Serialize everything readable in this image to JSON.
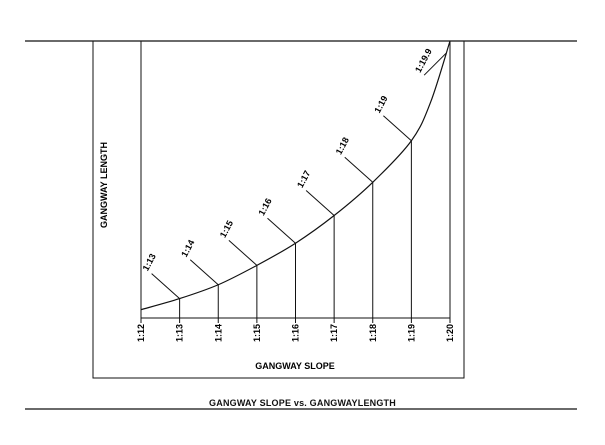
{
  "chart_data": {
    "type": "line",
    "title": "",
    "xlabel": "GANGWAY SLOPE",
    "ylabel": "GANGWAY LENGTH",
    "caption": "GANGWAY SLOPE vs. GANGWAYLENGTH",
    "x_ticks": [
      "1:12",
      "1:13",
      "1:14",
      "1:15",
      "1:16",
      "1:17",
      "1:18",
      "1:19",
      "1:20"
    ],
    "annotations": [
      {
        "label": "1:13",
        "slope": 13
      },
      {
        "label": "1:14",
        "slope": 14
      },
      {
        "label": "1:15",
        "slope": 15
      },
      {
        "label": "1:16",
        "slope": 16
      },
      {
        "label": "1:17",
        "slope": 17
      },
      {
        "label": "1:18",
        "slope": 18
      },
      {
        "label": "1:19",
        "slope": 19
      },
      {
        "label": "1:19.9",
        "slope": 19.9
      }
    ],
    "series": [
      {
        "x": [
          12,
          13,
          14,
          15,
          16,
          17,
          18,
          19,
          19.5,
          20
        ],
        "y": [
          0.03,
          0.07,
          0.12,
          0.19,
          0.27,
          0.37,
          0.49,
          0.64,
          0.78,
          1.0
        ]
      }
    ],
    "xlim": [
      12,
      20
    ],
    "ylim": [
      0,
      1.0
    ],
    "grid": false,
    "y_ticks_shown": false
  }
}
